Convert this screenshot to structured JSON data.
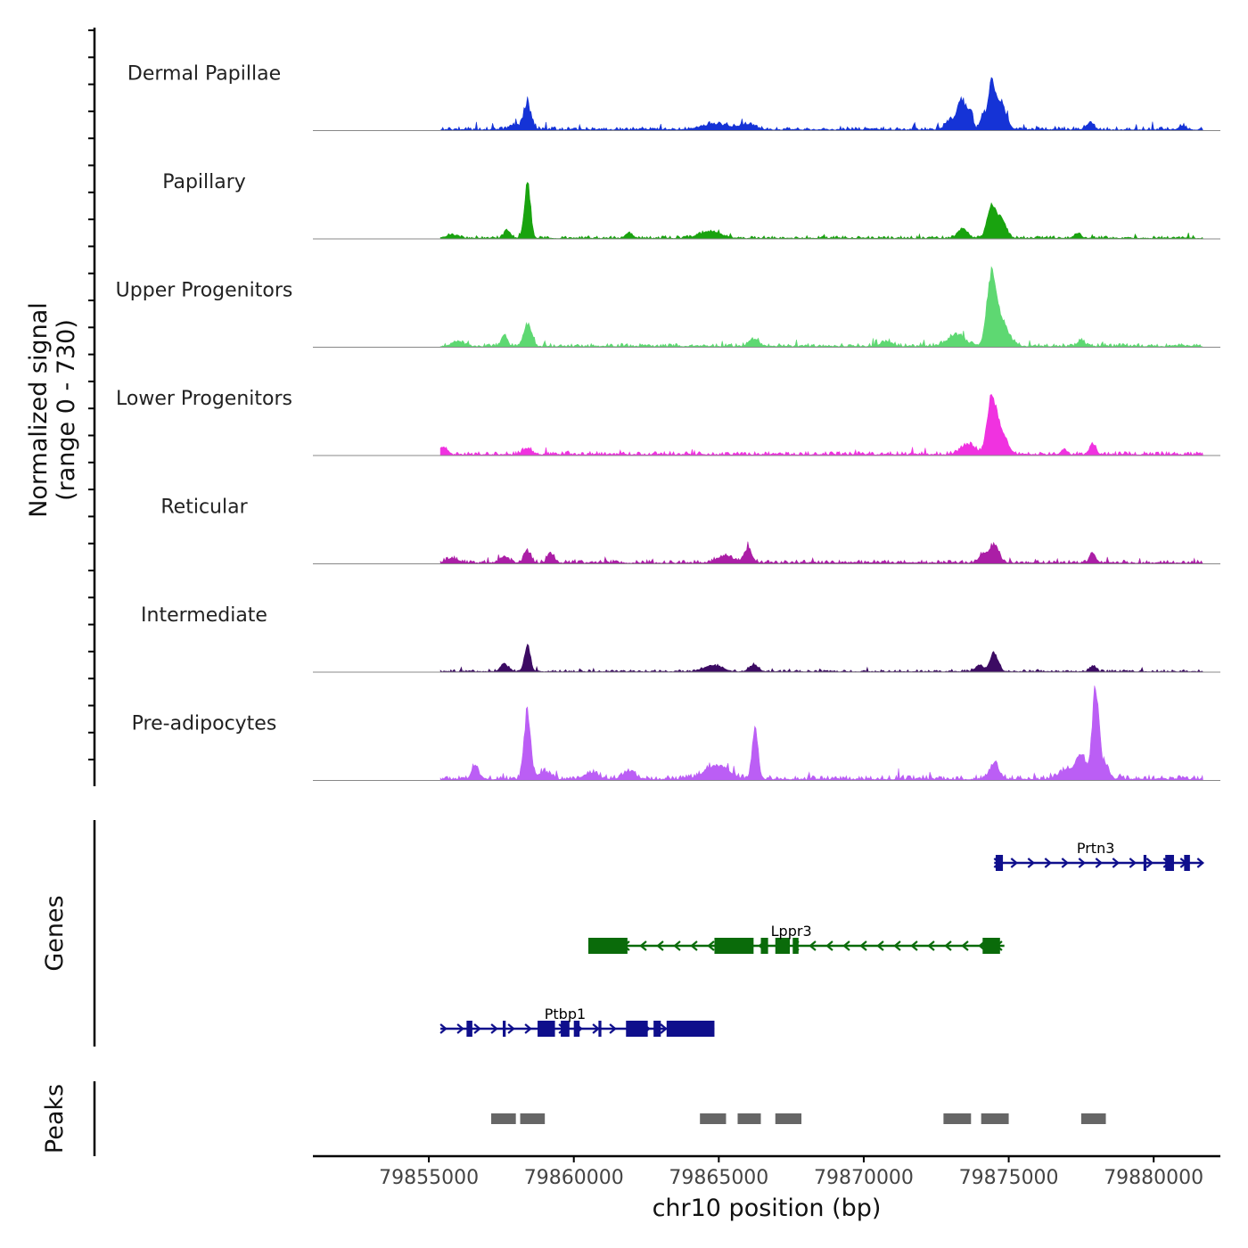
{
  "chart_data": {
    "type": "area",
    "title": "",
    "chromosome": "chr10",
    "xlabel": "chr10 position (bp)",
    "ylabel": "Normalized signal\n(range 0 - 730)",
    "signal_range": [
      0,
      730
    ],
    "xlim": [
      79851000,
      79882300
    ],
    "data_extent": [
      79855400,
      79881700
    ],
    "x_ticks": [
      79855000,
      79860000,
      79865000,
      79870000,
      79875000,
      79880000
    ],
    "x_tick_labels": [
      "79855000",
      "79860000",
      "79865000",
      "79870000",
      "79875000",
      "79880000"
    ],
    "tracks": [
      {
        "name": "Dermal Papillae",
        "color": "#1533d6",
        "background": 28,
        "peaks": [
          {
            "pos": 79858400,
            "height": 200,
            "width": 130
          },
          {
            "pos": 79857900,
            "height": 40,
            "width": 140
          },
          {
            "pos": 79873400,
            "height": 240,
            "width": 150
          },
          {
            "pos": 79873700,
            "height": 130,
            "width": 70
          },
          {
            "pos": 79874100,
            "height": 120,
            "width": 90
          },
          {
            "pos": 79874400,
            "height": 340,
            "width": 110
          },
          {
            "pos": 79874700,
            "height": 240,
            "width": 190
          },
          {
            "pos": 79873000,
            "height": 70,
            "width": 180
          },
          {
            "pos": 79877800,
            "height": 55,
            "width": 130
          },
          {
            "pos": 79864900,
            "height": 45,
            "width": 500
          },
          {
            "pos": 79866000,
            "height": 38,
            "width": 250
          },
          {
            "pos": 79881000,
            "height": 30,
            "width": 120
          }
        ]
      },
      {
        "name": "Papillary",
        "color": "#19a30f",
        "background": 22,
        "peaks": [
          {
            "pos": 79858400,
            "height": 470,
            "width": 100
          },
          {
            "pos": 79857700,
            "height": 55,
            "width": 120
          },
          {
            "pos": 79874400,
            "height": 250,
            "width": 150
          },
          {
            "pos": 79874750,
            "height": 150,
            "width": 160
          },
          {
            "pos": 79873400,
            "height": 75,
            "width": 160
          },
          {
            "pos": 79877400,
            "height": 40,
            "width": 100
          },
          {
            "pos": 79864700,
            "height": 55,
            "width": 350
          },
          {
            "pos": 79861900,
            "height": 40,
            "width": 120
          },
          {
            "pos": 79855800,
            "height": 28,
            "width": 200
          }
        ]
      },
      {
        "name": "Upper Progenitors",
        "color": "#5ed872",
        "background": 28,
        "peaks": [
          {
            "pos": 79874400,
            "height": 500,
            "width": 150
          },
          {
            "pos": 79874700,
            "height": 220,
            "width": 260
          },
          {
            "pos": 79873200,
            "height": 90,
            "width": 300
          },
          {
            "pos": 79858400,
            "height": 180,
            "width": 130
          },
          {
            "pos": 79857600,
            "height": 90,
            "width": 100
          },
          {
            "pos": 79866200,
            "height": 60,
            "width": 160
          },
          {
            "pos": 79877500,
            "height": 50,
            "width": 110
          },
          {
            "pos": 79856000,
            "height": 40,
            "width": 200
          },
          {
            "pos": 79870800,
            "height": 35,
            "width": 200
          }
        ]
      },
      {
        "name": "Lower Progenitors",
        "color": "#f032e0",
        "background": 30,
        "peaks": [
          {
            "pos": 79874400,
            "height": 390,
            "width": 150
          },
          {
            "pos": 79874700,
            "height": 200,
            "width": 220
          },
          {
            "pos": 79873600,
            "height": 80,
            "width": 250
          },
          {
            "pos": 79877900,
            "height": 85,
            "width": 110
          },
          {
            "pos": 79858400,
            "height": 50,
            "width": 150
          },
          {
            "pos": 79855500,
            "height": 60,
            "width": 100
          },
          {
            "pos": 79876900,
            "height": 45,
            "width": 100
          }
        ]
      },
      {
        "name": "Reticular",
        "color": "#ab1ea6",
        "background": 28,
        "peaks": [
          {
            "pos": 79874500,
            "height": 160,
            "width": 160
          },
          {
            "pos": 79874100,
            "height": 70,
            "width": 130
          },
          {
            "pos": 79858400,
            "height": 95,
            "width": 120
          },
          {
            "pos": 79859200,
            "height": 80,
            "width": 110
          },
          {
            "pos": 79866000,
            "height": 110,
            "width": 140
          },
          {
            "pos": 79865200,
            "height": 60,
            "width": 250
          },
          {
            "pos": 79877900,
            "height": 85,
            "width": 100
          },
          {
            "pos": 79857600,
            "height": 50,
            "width": 150
          },
          {
            "pos": 79855800,
            "height": 35,
            "width": 200
          }
        ]
      },
      {
        "name": "Intermediate",
        "color": "#3c0b63",
        "background": 18,
        "peaks": [
          {
            "pos": 79858400,
            "height": 210,
            "width": 100
          },
          {
            "pos": 79857600,
            "height": 70,
            "width": 120
          },
          {
            "pos": 79874500,
            "height": 150,
            "width": 140
          },
          {
            "pos": 79874000,
            "height": 50,
            "width": 140
          },
          {
            "pos": 79864800,
            "height": 50,
            "width": 300
          },
          {
            "pos": 79866200,
            "height": 55,
            "width": 150
          },
          {
            "pos": 79877900,
            "height": 45,
            "width": 110
          }
        ]
      },
      {
        "name": "Pre-adipocytes",
        "color": "#bb5ef5",
        "background": 38,
        "peaks": [
          {
            "pos": 79858400,
            "height": 550,
            "width": 110
          },
          {
            "pos": 79866250,
            "height": 430,
            "width": 100
          },
          {
            "pos": 79878000,
            "height": 730,
            "width": 120
          },
          {
            "pos": 79877500,
            "height": 200,
            "width": 160
          },
          {
            "pos": 79877000,
            "height": 80,
            "width": 250
          },
          {
            "pos": 79874500,
            "height": 130,
            "width": 160
          },
          {
            "pos": 79856600,
            "height": 110,
            "width": 120
          },
          {
            "pos": 79864900,
            "height": 110,
            "width": 400
          },
          {
            "pos": 79861900,
            "height": 70,
            "width": 200
          },
          {
            "pos": 79860600,
            "height": 50,
            "width": 250
          },
          {
            "pos": 79858950,
            "height": 60,
            "width": 200
          },
          {
            "pos": 79878350,
            "height": 100,
            "width": 130
          }
        ]
      }
    ],
    "genes_label": "Genes",
    "genes": [
      {
        "name": "Prtn3",
        "strand": "+",
        "color": "#0f0f8c",
        "start": 79874500,
        "end": 79881700,
        "label_pos": 79878000,
        "exons": [
          [
            79874550,
            79874800
          ],
          [
            79879650,
            79879750
          ],
          [
            79880400,
            79880700
          ],
          [
            79881050,
            79881250
          ]
        ]
      },
      {
        "name": "Lppr3",
        "strand": "-",
        "color": "#0a6b0a",
        "start": 79860500,
        "end": 79874850,
        "label_pos": 79867500,
        "exons": [
          [
            79860500,
            79861850
          ],
          [
            79864850,
            79866200
          ],
          [
            79866450,
            79866700
          ],
          [
            79866950,
            79867450
          ],
          [
            79867550,
            79867750
          ],
          [
            79874100,
            79874700
          ]
        ]
      },
      {
        "name": "Ptbp1",
        "strand": "+",
        "color": "#0f0f8c",
        "start": 79855400,
        "end": 79864850,
        "label_pos": 79859700,
        "exons": [
          [
            79856300,
            79856500
          ],
          [
            79857550,
            79857650
          ],
          [
            79858750,
            79859350
          ],
          [
            79859550,
            79859850
          ],
          [
            79860000,
            79860200
          ],
          [
            79860850,
            79860950
          ],
          [
            79861800,
            79862550
          ],
          [
            79862750,
            79863000
          ],
          [
            79863200,
            79864850
          ]
        ]
      }
    ],
    "peaks_label": "Peaks",
    "peak_regions": [
      [
        79857150,
        79858000
      ],
      [
        79858150,
        79859000
      ],
      [
        79864350,
        79865250
      ],
      [
        79865650,
        79866450
      ],
      [
        79866950,
        79867850
      ],
      [
        79872750,
        79873700
      ],
      [
        79874050,
        79875000
      ],
      [
        79877500,
        79878350
      ]
    ]
  }
}
